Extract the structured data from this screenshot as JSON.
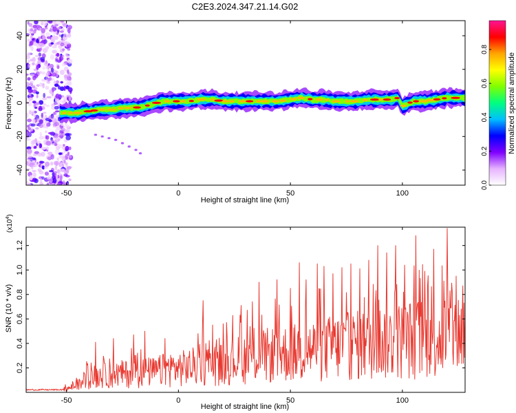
{
  "title": "C2E3.2024.347.21.14.G02",
  "chart_data": [
    {
      "type": "heatmap",
      "xlabel": "Height of straight line (km)",
      "ylabel": "Frequency (Hz)",
      "xlim": [
        -68,
        128
      ],
      "ylim": [
        -49,
        49
      ],
      "xticks": [
        -50,
        0,
        50,
        100
      ],
      "yticks": [
        -40,
        -20,
        0,
        20,
        40
      ],
      "colorbar": {
        "label": "Normalized spectral amplitude",
        "range": [
          0,
          0.97
        ],
        "ticks": [
          0.0,
          0.2,
          0.4,
          0.6,
          0.8
        ],
        "colors": [
          "#ffffff",
          "#e6b3ff",
          "#7f00ff",
          "#0000ff",
          "#00bfff",
          "#00ff7f",
          "#80ff00",
          "#ffff00",
          "#ffa500",
          "#ff0000",
          "#ff1493"
        ]
      },
      "ridge": {
        "x": [
          -53,
          -50,
          -47,
          -45,
          -42,
          -40,
          -35,
          -30,
          -25,
          -20,
          -15,
          -10,
          -5,
          0,
          5,
          10,
          15,
          20,
          25,
          30,
          35,
          40,
          45,
          50,
          55,
          60,
          65,
          70,
          75,
          80,
          85,
          90,
          95,
          98,
          100,
          103,
          105,
          110,
          115,
          120,
          125,
          128
        ],
        "y": [
          -6,
          -6,
          -6,
          -6,
          -5,
          -5,
          -4,
          -4,
          -3,
          -3,
          -2,
          0,
          1,
          1,
          1,
          2,
          2,
          1,
          1,
          1,
          1,
          1,
          1,
          2,
          3,
          2,
          2,
          1,
          1,
          1,
          2,
          2,
          2,
          3,
          -2,
          0,
          1,
          1,
          2,
          3,
          3,
          3
        ]
      },
      "noise_region": {
        "x_from": -68,
        "x_to": -48,
        "y_from": -49,
        "y_to": 49
      },
      "trace": {
        "x": [
          -37,
          -34,
          -31,
          -28,
          -25,
          -22,
          -19,
          -17
        ],
        "y": [
          -19,
          -20,
          -21,
          -22,
          -24,
          -26,
          -28,
          -30
        ]
      }
    },
    {
      "type": "line",
      "xlabel": "Height of straight line (km)",
      "ylabel": "SNR (10 * v/v)",
      "exponent_label": "(x10",
      "exponent_power": "4",
      "exponent_close": ")",
      "xlim": [
        -68,
        128
      ],
      "ylim": [
        0,
        1.35
      ],
      "xticks": [
        -50,
        0,
        50,
        100
      ],
      "yticks": [
        0.2,
        0.4,
        0.6,
        0.8,
        1.0,
        1.2
      ],
      "color": "#e8382f",
      "envelope": {
        "x": [
          -68,
          -55,
          -50,
          -45,
          -40,
          -35,
          -30,
          -25,
          -20,
          -15,
          -10,
          -5,
          0,
          5,
          10,
          15,
          20,
          25,
          30,
          35,
          40,
          45,
          50,
          55,
          60,
          65,
          70,
          75,
          80,
          85,
          90,
          95,
          100,
          105,
          110,
          115,
          120,
          125,
          128
        ],
        "y": [
          0.02,
          0.02,
          0.04,
          0.08,
          0.17,
          0.2,
          0.2,
          0.22,
          0.22,
          0.24,
          0.24,
          0.28,
          0.28,
          0.3,
          0.32,
          0.33,
          0.34,
          0.38,
          0.4,
          0.42,
          0.44,
          0.46,
          0.46,
          0.48,
          0.5,
          0.52,
          0.53,
          0.55,
          0.56,
          0.58,
          0.6,
          0.6,
          0.62,
          0.64,
          0.65,
          0.66,
          0.68,
          0.7,
          0.7
        ]
      },
      "peaks": {
        "x": [
          -37,
          -29,
          -20,
          -15,
          -6,
          11,
          20,
          28,
          33,
          36,
          44,
          50,
          54,
          57,
          62,
          65,
          69,
          73,
          77,
          81,
          85,
          89,
          93,
          97,
          101,
          106,
          110,
          114,
          120,
          124,
          127
        ],
        "y": [
          0.41,
          0.44,
          0.47,
          0.5,
          0.44,
          0.75,
          0.56,
          0.71,
          0.74,
          0.9,
          0.92,
          0.85,
          1.06,
          0.92,
          1.05,
          1.03,
          0.97,
          1.02,
          1.05,
          1.01,
          1.08,
          1.2,
          1.14,
          1.2,
          1.04,
          1.28,
          0.99,
          1.17,
          1.34,
          0.95,
          0.87
        ]
      }
    }
  ]
}
